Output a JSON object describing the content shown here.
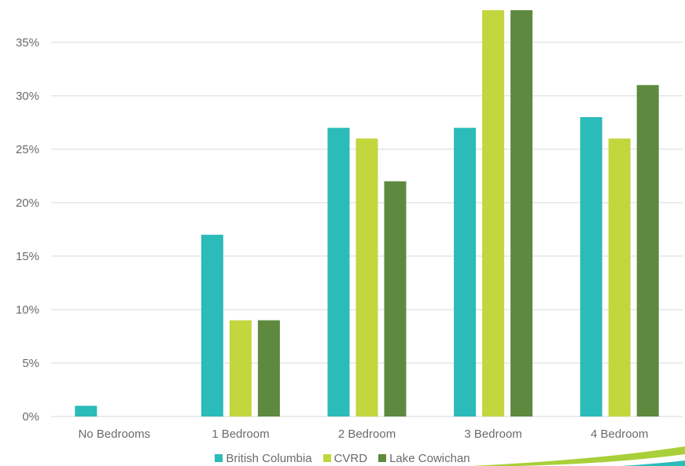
{
  "chart_data": {
    "type": "bar",
    "categories": [
      "No Bedrooms",
      "1 Bedroom",
      "2 Bedroom",
      "3 Bedroom",
      "4 Bedroom"
    ],
    "series": [
      {
        "name": "British Columbia",
        "color": "#2bbbb8",
        "values": [
          1,
          17,
          27,
          27,
          28
        ]
      },
      {
        "name": "CVRD",
        "color": "#c2d63d",
        "values": [
          0,
          9,
          26,
          38,
          26
        ]
      },
      {
        "name": "Lake Cowichan",
        "color": "#5e8a40",
        "values": [
          0,
          9,
          22,
          38,
          31
        ]
      }
    ],
    "yticks": [
      "0%",
      "5%",
      "10%",
      "15%",
      "20%",
      "25%",
      "30%",
      "35%"
    ],
    "ylim": [
      0,
      38
    ],
    "grid": true,
    "legend_position": "bottom",
    "decoration_colors": {
      "swoosh_green": "#a9cf3a",
      "swoosh_teal": "#2bbbb8"
    }
  }
}
